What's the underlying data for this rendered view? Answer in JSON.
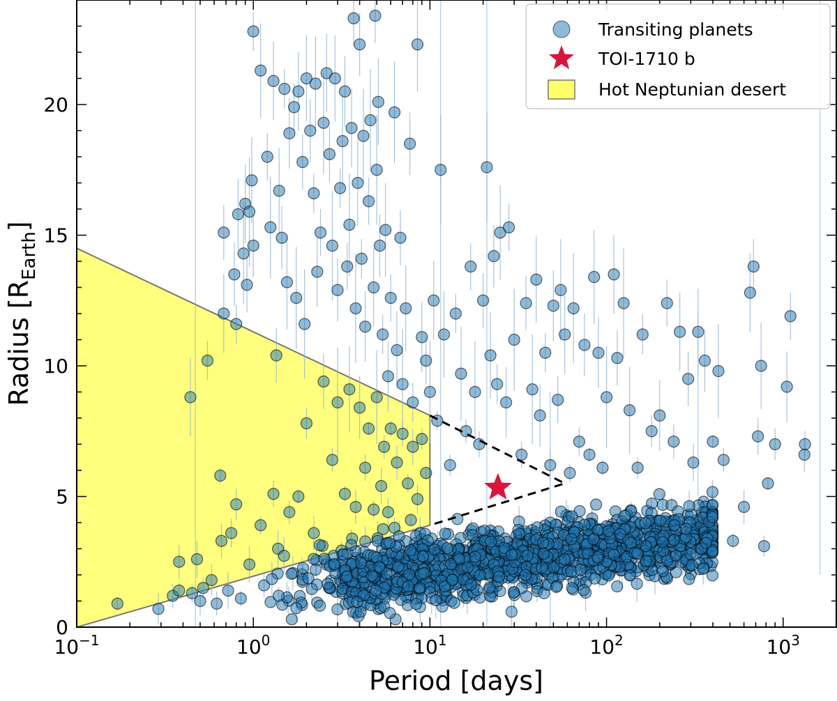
{
  "chart_data": {
    "type": "scatter",
    "title": "",
    "xlabel": "Period [days]",
    "ylabel_main": "Radius [R",
    "ylabel_sub": "Earth",
    "ylabel_close": "]",
    "xscale": "log",
    "xlim": [
      0.1,
      2000
    ],
    "ylim": [
      0,
      24
    ],
    "x_ticks": [
      {
        "value": 0.1,
        "base": "10",
        "exp": "−1"
      },
      {
        "value": 1,
        "base": "10",
        "exp": "0"
      },
      {
        "value": 10,
        "base": "10",
        "exp": "1"
      },
      {
        "value": 100,
        "base": "10",
        "exp": "2"
      },
      {
        "value": 1000,
        "base": "10",
        "exp": "3"
      }
    ],
    "y_ticks": [
      0,
      5,
      10,
      15,
      20
    ],
    "legend": {
      "location": "top-right",
      "entries": [
        {
          "key": "planets",
          "label": "Transiting planets"
        },
        {
          "key": "toi",
          "label": "TOI-1710 b"
        },
        {
          "key": "desert",
          "label": "Hot Neptunian desert"
        }
      ]
    },
    "colors": {
      "planet_fill": "#1f77b4",
      "planet_edge": "#000000",
      "errorbar": "#8fb3d6",
      "star": "#dc143c",
      "desert_fill": "#ffff66",
      "desert_edge": "#777777",
      "dashed": "#000000"
    },
    "desert_region": {
      "label": "Hot Neptunian desert",
      "polygon": [
        [
          0.1,
          0
        ],
        [
          0.1,
          14.5
        ],
        [
          10,
          8.1
        ],
        [
          10,
          3.9
        ]
      ],
      "dashed_extension": [
        [
          10,
          8.1
        ],
        [
          58,
          5.5
        ],
        [
          10,
          3.9
        ]
      ]
    },
    "highlight": {
      "name": "TOI-1710 b",
      "period": 24.28,
      "radius": 5.34,
      "radius_err": 0.11
    },
    "series": [
      {
        "name": "Transiting planets (representative catalogued points)",
        "points": [
          [
            0.17,
            0.9
          ],
          [
            0.29,
            0.7
          ],
          [
            0.35,
            1.2
          ],
          [
            0.38,
            1.4
          ],
          [
            0.38,
            2.5
          ],
          [
            0.44,
            8.8
          ],
          [
            0.45,
            1.3
          ],
          [
            0.48,
            2.6
          ],
          [
            0.5,
            1.0
          ],
          [
            0.52,
            1.5
          ],
          [
            0.55,
            10.2
          ],
          [
            0.58,
            1.8
          ],
          [
            0.62,
            0.9
          ],
          [
            0.65,
            5.8
          ],
          [
            0.66,
            3.3
          ],
          [
            0.68,
            12.0
          ],
          [
            0.68,
            15.1
          ],
          [
            0.72,
            1.4
          ],
          [
            0.75,
            3.6
          ],
          [
            0.78,
            13.5
          ],
          [
            0.8,
            11.6
          ],
          [
            0.8,
            4.7
          ],
          [
            0.82,
            15.8
          ],
          [
            0.85,
            1.1
          ],
          [
            0.88,
            14.3
          ],
          [
            0.9,
            16.2
          ],
          [
            0.92,
            13.1
          ],
          [
            0.95,
            15.9
          ],
          [
            0.98,
            17.1
          ],
          [
            1.0,
            14.6
          ],
          [
            1.0,
            22.8
          ],
          [
            1.1,
            21.3
          ],
          [
            1.15,
            1.6
          ],
          [
            1.2,
            18.0
          ],
          [
            1.25,
            15.3
          ],
          [
            1.3,
            20.9
          ],
          [
            1.35,
            10.4
          ],
          [
            1.38,
            3.0
          ],
          [
            1.4,
            16.7
          ],
          [
            1.45,
            14.9
          ],
          [
            1.5,
            20.6
          ],
          [
            1.55,
            13.2
          ],
          [
            1.6,
            18.9
          ],
          [
            1.7,
            19.9
          ],
          [
            1.75,
            12.6
          ],
          [
            1.8,
            20.5
          ],
          [
            1.9,
            17.8
          ],
          [
            1.95,
            11.6
          ],
          [
            2.0,
            21.0
          ],
          [
            2.1,
            19.0
          ],
          [
            2.2,
            16.6
          ],
          [
            2.25,
            20.8
          ],
          [
            2.3,
            13.6
          ],
          [
            2.4,
            15.1
          ],
          [
            2.5,
            19.3
          ],
          [
            2.6,
            21.2
          ],
          [
            2.7,
            18.1
          ],
          [
            2.8,
            14.6
          ],
          [
            2.9,
            21.0
          ],
          [
            3.0,
            12.9
          ],
          [
            3.1,
            16.8
          ],
          [
            3.2,
            18.6
          ],
          [
            3.3,
            20.5
          ],
          [
            3.4,
            13.8
          ],
          [
            3.5,
            15.4
          ],
          [
            3.6,
            19.1
          ],
          [
            3.7,
            23.3
          ],
          [
            3.8,
            12.2
          ],
          [
            3.9,
            17.0
          ],
          [
            4.0,
            22.3
          ],
          [
            4.1,
            14.1
          ],
          [
            4.2,
            18.8
          ],
          [
            4.3,
            11.5
          ],
          [
            4.5,
            16.3
          ],
          [
            4.6,
            19.4
          ],
          [
            4.8,
            13.0
          ],
          [
            4.9,
            23.4
          ],
          [
            5.0,
            17.5
          ],
          [
            5.1,
            20.1
          ],
          [
            5.2,
            14.6
          ],
          [
            5.4,
            11.2
          ],
          [
            5.6,
            15.2
          ],
          [
            5.8,
            9.6
          ],
          [
            6.0,
            12.6
          ],
          [
            6.3,
            19.7
          ],
          [
            6.5,
            10.6
          ],
          [
            6.8,
            14.9
          ],
          [
            7.0,
            9.3
          ],
          [
            7.3,
            12.2
          ],
          [
            7.7,
            18.5
          ],
          [
            8.0,
            8.6
          ],
          [
            8.5,
            22.3
          ],
          [
            9.0,
            11.1
          ],
          [
            9.5,
            10.2
          ],
          [
            10.0,
            9.0
          ],
          [
            10.5,
            12.5
          ],
          [
            11.0,
            7.9
          ],
          [
            11.5,
            17.5
          ],
          [
            12.0,
            11.2
          ],
          [
            13.0,
            6.2
          ],
          [
            14.0,
            12.0
          ],
          [
            15.0,
            9.7
          ],
          [
            16.0,
            7.5
          ],
          [
            17.0,
            13.8
          ],
          [
            18.0,
            9.0
          ],
          [
            19.0,
            7.0
          ],
          [
            20.0,
            12.5
          ],
          [
            21.0,
            17.6
          ],
          [
            22.0,
            10.4
          ],
          [
            23.0,
            14.2
          ],
          [
            24.0,
            9.3
          ],
          [
            25.0,
            15.1
          ],
          [
            27.0,
            8.6
          ],
          [
            28.0,
            15.3
          ],
          [
            30.0,
            11.0
          ],
          [
            33.0,
            6.6
          ],
          [
            35.0,
            12.4
          ],
          [
            38.0,
            9.1
          ],
          [
            40.0,
            13.3
          ],
          [
            42.0,
            8.1
          ],
          [
            45.0,
            10.5
          ],
          [
            48.0,
            6.2
          ],
          [
            50.0,
            12.3
          ],
          [
            53.0,
            8.7
          ],
          [
            55.0,
            12.9
          ],
          [
            58.0,
            11.2
          ],
          [
            62.0,
            5.9
          ],
          [
            65.0,
            12.2
          ],
          [
            70.0,
            7.1
          ],
          [
            75.0,
            10.8
          ],
          [
            80.0,
            6.6
          ],
          [
            85.0,
            13.4
          ],
          [
            90.0,
            10.5
          ],
          [
            95.0,
            6.1
          ],
          [
            100.0,
            8.8
          ],
          [
            110.0,
            13.5
          ],
          [
            115.0,
            10.3
          ],
          [
            125.0,
            12.4
          ],
          [
            135.0,
            8.3
          ],
          [
            150.0,
            6.1
          ],
          [
            160.0,
            11.2
          ],
          [
            180.0,
            7.5
          ],
          [
            200.0,
            8.1
          ],
          [
            220.0,
            12.4
          ],
          [
            240.0,
            7.1
          ],
          [
            260.0,
            11.3
          ],
          [
            290.0,
            9.5
          ],
          [
            310.0,
            6.3
          ],
          [
            330.0,
            11.3
          ],
          [
            360.0,
            10.2
          ],
          [
            400.0,
            7.1
          ],
          [
            430.0,
            9.8
          ],
          [
            460.0,
            6.4
          ],
          [
            520.0,
            3.3
          ],
          [
            600.0,
            4.6
          ],
          [
            650.0,
            12.8
          ],
          [
            680.0,
            13.8
          ],
          [
            720.0,
            7.3
          ],
          [
            750.0,
            10.0
          ],
          [
            780.0,
            3.1
          ],
          [
            820.0,
            5.5
          ],
          [
            900.0,
            7.0
          ],
          [
            1050.0,
            9.2
          ],
          [
            1100.0,
            11.9
          ],
          [
            1320.0,
            6.6
          ],
          [
            1330.0,
            7.0
          ],
          [
            2.5,
            9.4
          ],
          [
            3.0,
            8.6
          ],
          [
            3.5,
            9.1
          ],
          [
            4.0,
            8.4
          ],
          [
            4.5,
            7.6
          ],
          [
            5.0,
            8.8
          ],
          [
            5.5,
            6.9
          ],
          [
            6.0,
            7.6
          ],
          [
            6.5,
            6.3
          ],
          [
            7.0,
            7.4
          ],
          [
            7.5,
            5.5
          ],
          [
            8.0,
            6.9
          ],
          [
            8.5,
            4.9
          ],
          [
            9.0,
            7.2
          ],
          [
            9.5,
            5.9
          ],
          [
            2.0,
            7.8
          ],
          [
            2.8,
            6.4
          ],
          [
            3.3,
            5.1
          ],
          [
            3.8,
            4.6
          ],
          [
            4.3,
            6.1
          ],
          [
            4.8,
            4.5
          ],
          [
            5.3,
            5.4
          ],
          [
            5.8,
            4.4
          ],
          [
            6.3,
            3.8
          ],
          [
            7.8,
            4.1
          ],
          [
            8.8,
            3.6
          ],
          [
            1.6,
            4.4
          ],
          [
            1.8,
            5.0
          ],
          [
            2.2,
            3.6
          ],
          [
            1.3,
            5.1
          ],
          [
            1.1,
            3.9
          ],
          [
            0.95,
            2.4
          ]
        ]
      }
    ],
    "background_population": {
      "description": "dense band of small planets",
      "count": 1400,
      "seed": 7
    }
  }
}
